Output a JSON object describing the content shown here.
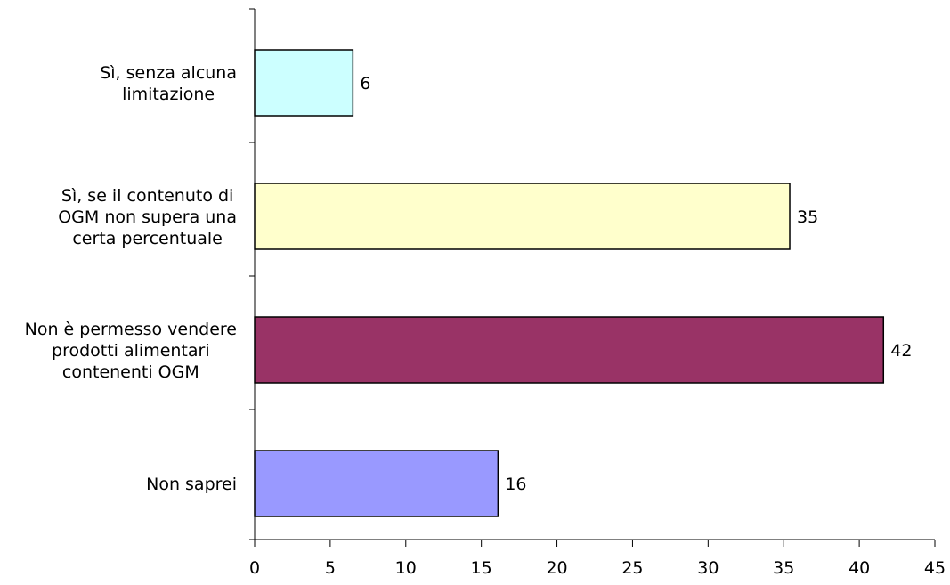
{
  "chart_data": {
    "type": "bar",
    "orientation": "horizontal",
    "categories": [
      [
        "Sì, senza alcuna",
        "limitazione"
      ],
      [
        "Sì, se il contenuto di",
        "OGM non supera una",
        "certa percentuale"
      ],
      [
        "Non è permesso vendere",
        "prodotti alimentari",
        "contenenti OGM"
      ],
      [
        "Non saprei"
      ]
    ],
    "values": [
      6,
      35,
      42,
      16
    ],
    "bar_lengths": [
      6.5,
      35.4,
      41.6,
      16.1
    ],
    "colors": [
      "#CCFFFF",
      "#FFFFCC",
      "#993366",
      "#9999FF"
    ],
    "xlim": [
      0,
      45
    ],
    "xticks": [
      0,
      5,
      10,
      15,
      20,
      25,
      30,
      35,
      40,
      45
    ],
    "title": "",
    "xlabel": "",
    "ylabel": "",
    "grid": false,
    "legend": "none"
  }
}
